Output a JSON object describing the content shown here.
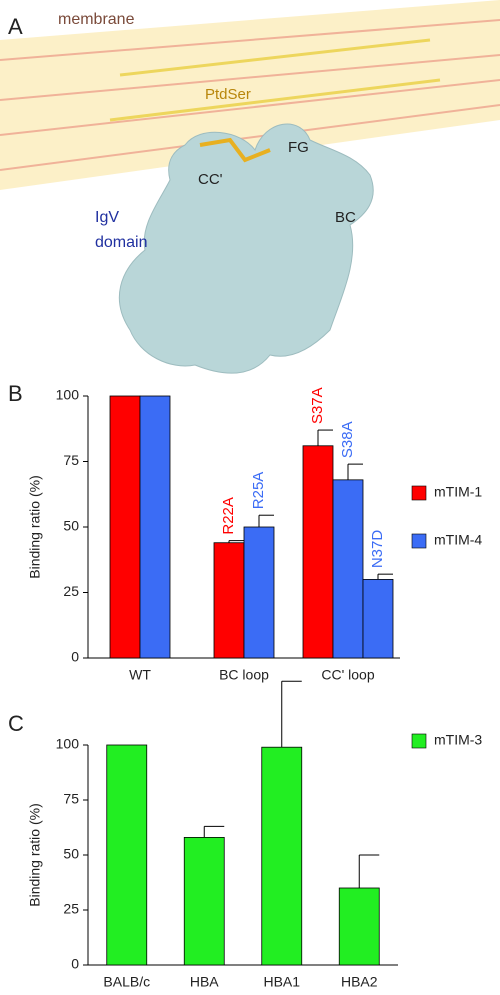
{
  "panel_a": {
    "letter": "A",
    "membrane": "membrane",
    "lipid": "PtdSer",
    "loops": [
      "FG",
      "CC'",
      "BC"
    ],
    "domain": [
      "IgV",
      "domain"
    ]
  },
  "chart_data": [
    {
      "type": "bar",
      "panel": "B",
      "ylabel": "Binding ratio (%)",
      "categories": [
        "WT",
        "BC loop",
        "CC' loop"
      ],
      "ylim": [
        0,
        100
      ],
      "yticks": [
        0,
        25,
        50,
        75,
        100
      ],
      "legend": "right",
      "series": [
        {
          "name": "mTIM-1",
          "color": "#ff0000",
          "values": [
            [
              100
            ],
            [
              44
            ],
            [
              81
            ]
          ],
          "errors": [
            [
              null
            ],
            [
              0.8
            ],
            [
              6
            ]
          ],
          "bar_labels": [
            [
              null
            ],
            [
              "R22A"
            ],
            [
              "S37A"
            ]
          ]
        },
        {
          "name": "mTIM-4",
          "color": "#3b6cf5",
          "values": [
            [
              100
            ],
            [
              50
            ],
            [
              68,
              30
            ]
          ],
          "errors": [
            [
              null
            ],
            [
              4.5
            ],
            [
              6,
              2
            ]
          ],
          "bar_labels": [
            [
              null
            ],
            [
              "R25A"
            ],
            [
              "S38A",
              "N37D"
            ]
          ]
        }
      ]
    },
    {
      "type": "bar",
      "panel": "C",
      "ylabel": "Binding ratio (%)",
      "categories": [
        "BALB/c",
        "HBA",
        "HBA1",
        "HBA2"
      ],
      "ylim": [
        0,
        100
      ],
      "yticks": [
        0,
        25,
        50,
        75,
        100
      ],
      "legend": "right",
      "series": [
        {
          "name": "mTIM-3",
          "color": "#22ee22",
          "values": [
            100,
            58,
            99,
            35
          ],
          "errors": [
            null,
            5,
            30,
            15
          ]
        }
      ]
    }
  ]
}
